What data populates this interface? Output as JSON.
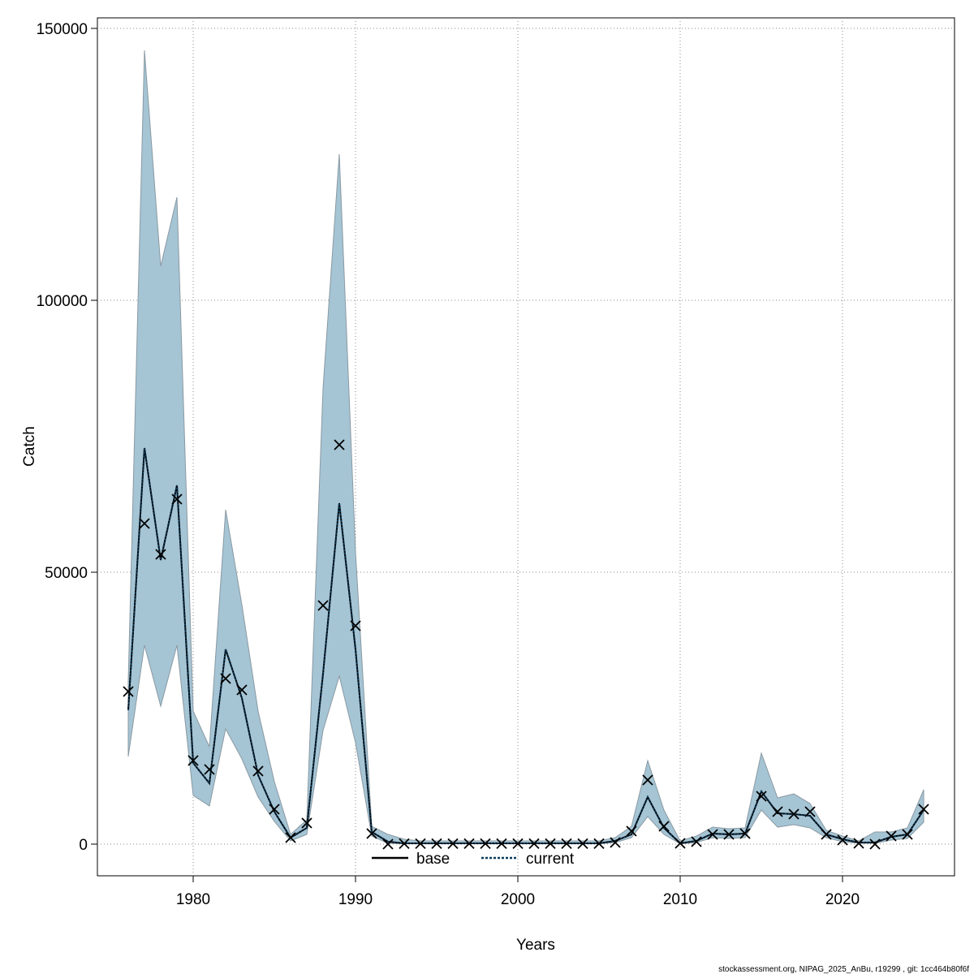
{
  "chart_data": {
    "type": "line",
    "xlabel": "Years",
    "ylabel": "Catch",
    "footer": "stockassessment.org, NIPAG_2025_AnBu, r19299 , git: 1cc464b80f6f",
    "x": [
      1976,
      1977,
      1978,
      1979,
      1980,
      1981,
      1982,
      1983,
      1984,
      1985,
      1986,
      1987,
      1988,
      1989,
      1990,
      1991,
      1992,
      1993,
      1994,
      1995,
      1996,
      1997,
      1998,
      1999,
      2000,
      2001,
      2002,
      2003,
      2004,
      2005,
      2006,
      2007,
      2008,
      2009,
      2010,
      2011,
      2012,
      2013,
      2014,
      2015,
      2016,
      2017,
      2018,
      2019,
      2020,
      2021,
      2022,
      2023,
      2024,
      2025
    ],
    "observed": [
      28060,
      58960,
      53280,
      63430,
      15370,
      13730,
      30450,
      28360,
      13430,
      6420,
      1190,
      3880,
      43880,
      73430,
      40150,
      1940,
      0,
      100,
      100,
      100,
      100,
      100,
      100,
      100,
      100,
      100,
      100,
      100,
      100,
      100,
      300,
      2390,
      11790,
      3280,
      150,
      450,
      1790,
      1790,
      1940,
      8810,
      5970,
      5520,
      5970,
      1790,
      750,
      150,
      0,
      1490,
      1790,
      6420
    ],
    "series": [
      {
        "name": "base",
        "color": "#000000",
        "dash": "solid",
        "values": [
          24630,
          72840,
          52240,
          65970,
          14930,
          11190,
          35820,
          26870,
          12690,
          5970,
          1190,
          2990,
          31340,
          62690,
          35820,
          2240,
          450,
          150,
          150,
          150,
          150,
          150,
          150,
          150,
          150,
          150,
          150,
          150,
          150,
          150,
          600,
          1790,
          8660,
          2990,
          150,
          600,
          1940,
          1790,
          1940,
          9700,
          5670,
          5520,
          5220,
          1790,
          900,
          300,
          300,
          1340,
          1790,
          6270
        ]
      },
      {
        "name": "current",
        "color": "#0b3b5c",
        "dash": "dotted",
        "values": [
          24630,
          72840,
          52240,
          65970,
          14930,
          11190,
          35820,
          26870,
          12690,
          5970,
          1190,
          2990,
          31340,
          62690,
          35820,
          2240,
          450,
          150,
          150,
          150,
          150,
          150,
          150,
          150,
          150,
          150,
          150,
          150,
          150,
          150,
          600,
          1790,
          8660,
          2990,
          150,
          600,
          1940,
          1790,
          1940,
          9700,
          5670,
          5520,
          5220,
          1790,
          900,
          300,
          300,
          1340,
          1790,
          6270
        ]
      }
    ],
    "band": {
      "color": "#a5c4d4",
      "lower": [
        16120,
        36570,
        25370,
        36570,
        8960,
        7010,
        21190,
        15670,
        8660,
        4180,
        600,
        1790,
        20900,
        30900,
        18660,
        1490,
        150,
        50,
        50,
        50,
        50,
        50,
        50,
        50,
        50,
        50,
        50,
        50,
        50,
        50,
        300,
        1190,
        5070,
        1790,
        50,
        300,
        1190,
        1040,
        1190,
        6270,
        3130,
        3580,
        2990,
        1190,
        450,
        150,
        150,
        750,
        1040,
        4030
      ],
      "upper": [
        30000,
        145970,
        106270,
        118960,
        24480,
        17910,
        61490,
        44030,
        24480,
        11490,
        1790,
        4480,
        83880,
        126870,
        53730,
        3280,
        1790,
        900,
        600,
        600,
        600,
        600,
        600,
        600,
        600,
        600,
        600,
        600,
        600,
        600,
        1190,
        3280,
        15370,
        6270,
        600,
        1490,
        3130,
        2840,
        2990,
        16720,
        8510,
        9250,
        7460,
        2540,
        1490,
        600,
        2240,
        2240,
        2990,
        10000
      ]
    },
    "xlim": [
      1974.1,
      2026.9
    ],
    "ylim": [
      -5820,
      151940
    ],
    "xticks": [
      1980,
      1990,
      2000,
      2010,
      2020
    ],
    "yticks": [
      0,
      50000,
      100000,
      150000
    ],
    "grid": true,
    "legend": "bottom"
  }
}
